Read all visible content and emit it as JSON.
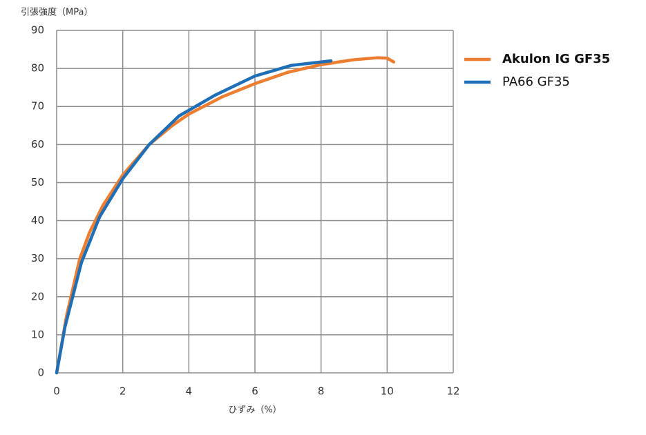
{
  "chart_data": {
    "type": "line",
    "y_label": "引張強度（MPa）",
    "x_label": "ひずみ（%）",
    "xlim": [
      0,
      12
    ],
    "xticks": [
      0,
      2,
      4,
      6,
      8,
      10,
      12
    ],
    "ylim": [
      0,
      90
    ],
    "yticks": [
      0,
      10,
      20,
      30,
      40,
      50,
      60,
      70,
      80,
      90
    ],
    "grid": true,
    "legend": "right",
    "series": [
      {
        "name": "Akulon IG GF35",
        "color": "#ed7d31",
        "x": [
          0,
          0.3,
          0.7,
          1.0,
          1.4,
          2.0,
          2.8,
          3.5,
          4.0,
          5.0,
          6.0,
          7.0,
          8.0,
          9.0,
          9.7,
          10.0,
          10.2
        ],
        "values": [
          0,
          15,
          30,
          37,
          44,
          52,
          60,
          65,
          68,
          72.5,
          76,
          79,
          81,
          82.3,
          82.8,
          82.7,
          81.7
        ]
      },
      {
        "name": "PA66 GF35",
        "color": "#1f6fb7",
        "x": [
          0,
          0.25,
          0.75,
          1.3,
          2.0,
          2.8,
          3.7,
          4.8,
          6.0,
          7.1,
          8.3
        ],
        "values": [
          0,
          12,
          29,
          41,
          51,
          60,
          67.5,
          73,
          78,
          80.8,
          82
        ]
      }
    ]
  }
}
